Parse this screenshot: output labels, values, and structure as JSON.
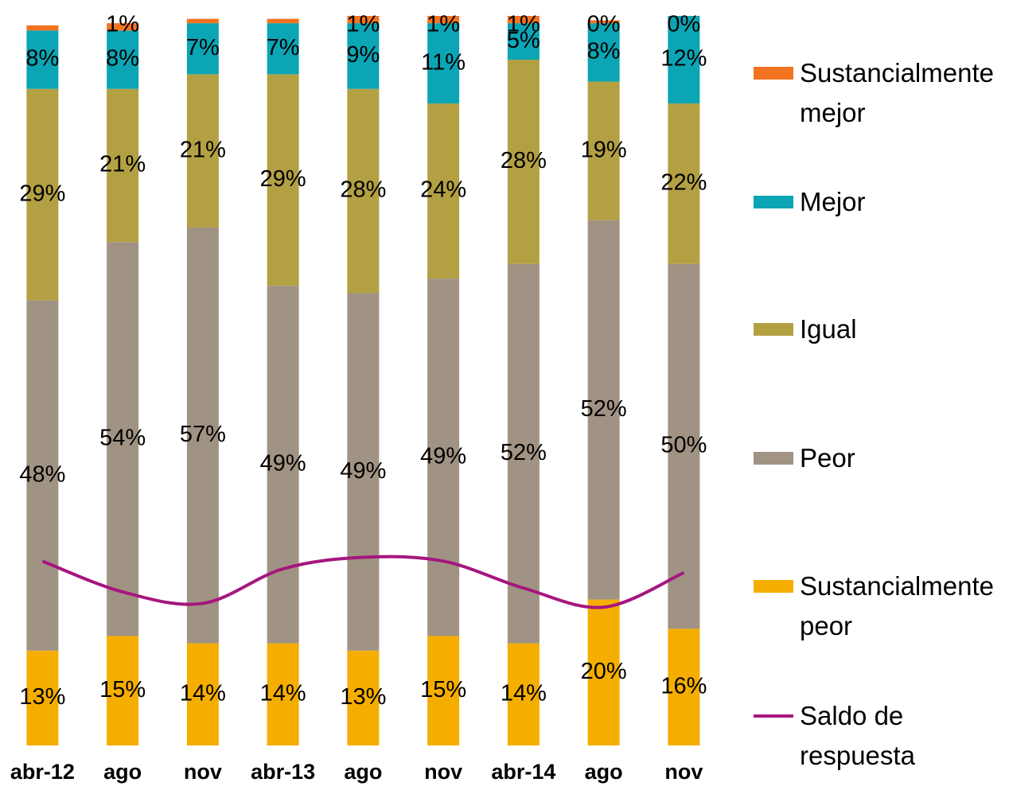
{
  "chart_data": {
    "type": "bar",
    "stacked": true,
    "categories": [
      "abr-12",
      "ago",
      "nov",
      "abr-13",
      "ago",
      "nov",
      "abr-14",
      "ago",
      "nov"
    ],
    "ylim": [
      0,
      100
    ],
    "y2lim": [
      -100,
      90
    ],
    "series": [
      {
        "name": "Sustancialmente peor",
        "color": "#f5ae00",
        "values": [
          13,
          15,
          14,
          14,
          13,
          15,
          14,
          20,
          16
        ],
        "value_labels": [
          "13%",
          "15%",
          "14%",
          "14%",
          "13%",
          "15%",
          "14%",
          "20%",
          "16%"
        ]
      },
      {
        "name": "Peor",
        "color": "#a09383",
        "values": [
          48,
          54,
          57,
          49,
          49,
          49,
          52,
          52,
          50
        ],
        "value_labels": [
          "48%",
          "54%",
          "57%",
          "49%",
          "49%",
          "49%",
          "52%",
          "52%",
          "50%"
        ]
      },
      {
        "name": "Igual",
        "color": "#b3a043",
        "values": [
          29,
          21,
          21,
          29,
          28,
          24,
          28,
          19,
          22
        ],
        "value_labels": [
          "29%",
          "21%",
          "21%",
          "29%",
          "28%",
          "24%",
          "28%",
          "19%",
          "22%"
        ]
      },
      {
        "name": "Mejor",
        "color": "#0ba5b5",
        "values": [
          8,
          8,
          7,
          7,
          9,
          11,
          5,
          8,
          12
        ],
        "value_labels": [
          "8%",
          "8%",
          "7%",
          "7%",
          "9%",
          "11%",
          "5%",
          "8%",
          "12%"
        ]
      },
      {
        "name": "Sustancialmente mejor",
        "color": "#f47320",
        "values": [
          0.7,
          1,
          0.6,
          0.6,
          1,
          1,
          1,
          0.4,
          0
        ],
        "value_labels": [
          null,
          "1%",
          null,
          null,
          "1%",
          "1%",
          "1%",
          "0%",
          "0%"
        ]
      },
      {
        "name": "Saldo de respuesta",
        "color": "#a6167f",
        "type": "line",
        "axis": "y2",
        "values": [
          -52,
          -60,
          -63,
          -54,
          -51,
          -52,
          -59,
          -64,
          -55
        ]
      }
    ],
    "legend": "right"
  }
}
